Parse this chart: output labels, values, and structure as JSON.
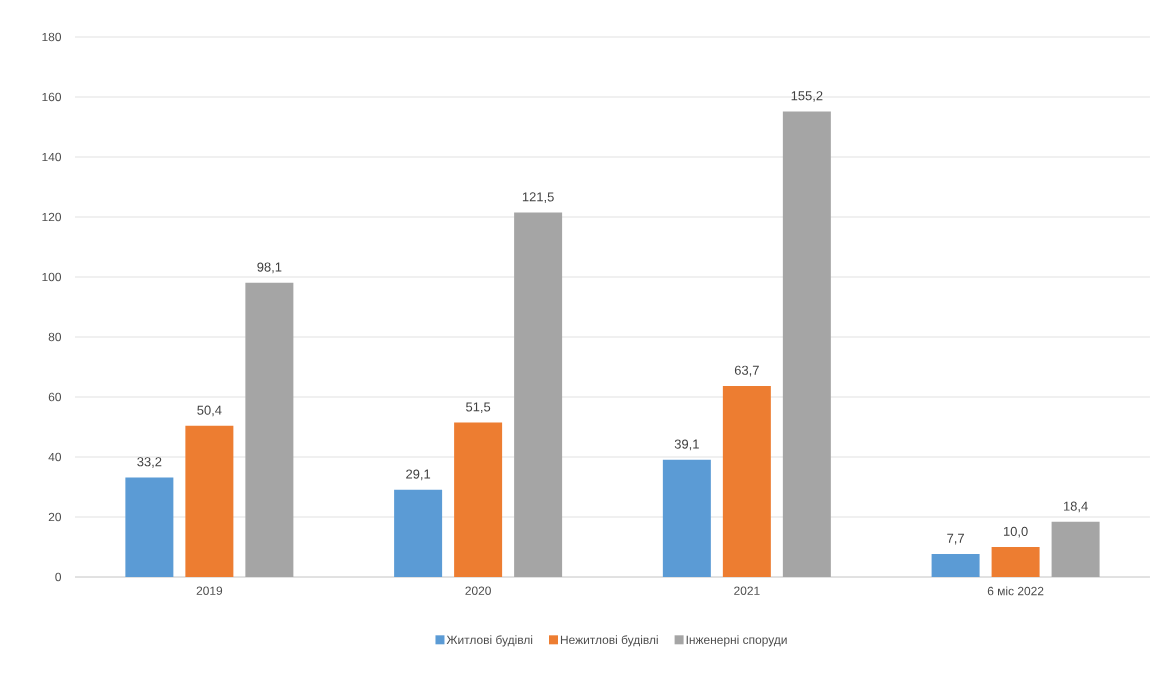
{
  "chart_data": {
    "type": "bar",
    "categories": [
      "2019",
      "2020",
      "2021",
      "6 міс 2022"
    ],
    "series": [
      {
        "name": "Житлові будівлі",
        "color": "#5b9bd5",
        "values": [
          33.2,
          29.1,
          39.1,
          7.7
        ],
        "value_labels": [
          "33,2",
          "29,1",
          "39,1",
          "7,7"
        ]
      },
      {
        "name": "Нежитлові будівлі",
        "color": "#ed7d31",
        "values": [
          50.4,
          51.5,
          63.7,
          10.0
        ],
        "value_labels": [
          "50,4",
          "51,5",
          "63,7",
          "10,0"
        ]
      },
      {
        "name": "Інженерні споруди",
        "color": "#a5a5a5",
        "values": [
          98.1,
          121.5,
          155.2,
          18.4
        ],
        "value_labels": [
          "98,1",
          "121,5",
          "155,2",
          "18,4"
        ]
      }
    ],
    "ylim": [
      0,
      180
    ],
    "yticks": [
      0,
      20,
      40,
      60,
      80,
      100,
      120,
      140,
      160,
      180
    ],
    "grid": "y",
    "legend": "bottom"
  }
}
